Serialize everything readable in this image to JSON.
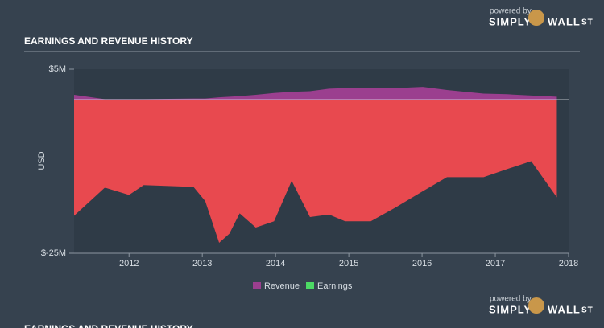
{
  "chart_data": {
    "type": "area",
    "title": "EARNINGS AND REVENUE HISTORY",
    "ylabel": "USD",
    "x": [
      2011.25,
      2011.67,
      2012.0,
      2012.2,
      2012.88,
      2013.04,
      2013.23,
      2013.37,
      2013.51,
      2013.73,
      2013.98,
      2014.22,
      2014.47,
      2014.73,
      2014.95,
      2015.3,
      2015.63,
      2016.01,
      2016.34,
      2016.84,
      2017.16,
      2017.49,
      2017.84
    ],
    "series": [
      {
        "name": "Revenue",
        "color": "#9b3f8f",
        "values": [
          0.8,
          0.1,
          0.1,
          0.1,
          0.2,
          0.2,
          0.4,
          0.5,
          0.6,
          0.8,
          1.1,
          1.3,
          1.4,
          1.8,
          1.9,
          1.9,
          1.9,
          2.1,
          1.6,
          1.0,
          0.9,
          0.7,
          0.5
        ]
      },
      {
        "name": "Earnings",
        "color": "#4cd964",
        "negative_color": "#e8494f",
        "values": [
          -18.9,
          -14.3,
          -15.5,
          -13.9,
          -14.2,
          -16.5,
          -23.3,
          -21.8,
          -18.5,
          -20.8,
          -19.8,
          -13.2,
          -19.1,
          -18.7,
          -19.8,
          -19.8,
          -17.6,
          -14.9,
          -12.6,
          -12.6,
          -11.3,
          -10.0,
          -15.9
        ]
      }
    ],
    "xlim": [
      2011.25,
      2018.0
    ],
    "xticks": [
      2012,
      2013,
      2014,
      2015,
      2016,
      2017,
      2018
    ],
    "ylim": [
      -25,
      5
    ],
    "yticks": [
      {
        "value": 5,
        "label": "$5M"
      },
      {
        "value": -25,
        "label": "$-25M"
      }
    ],
    "branding": {
      "tagline": "powered by",
      "name_left": "SIMPLY",
      "name_right": "WALL",
      "name_suffix": "ST"
    }
  }
}
